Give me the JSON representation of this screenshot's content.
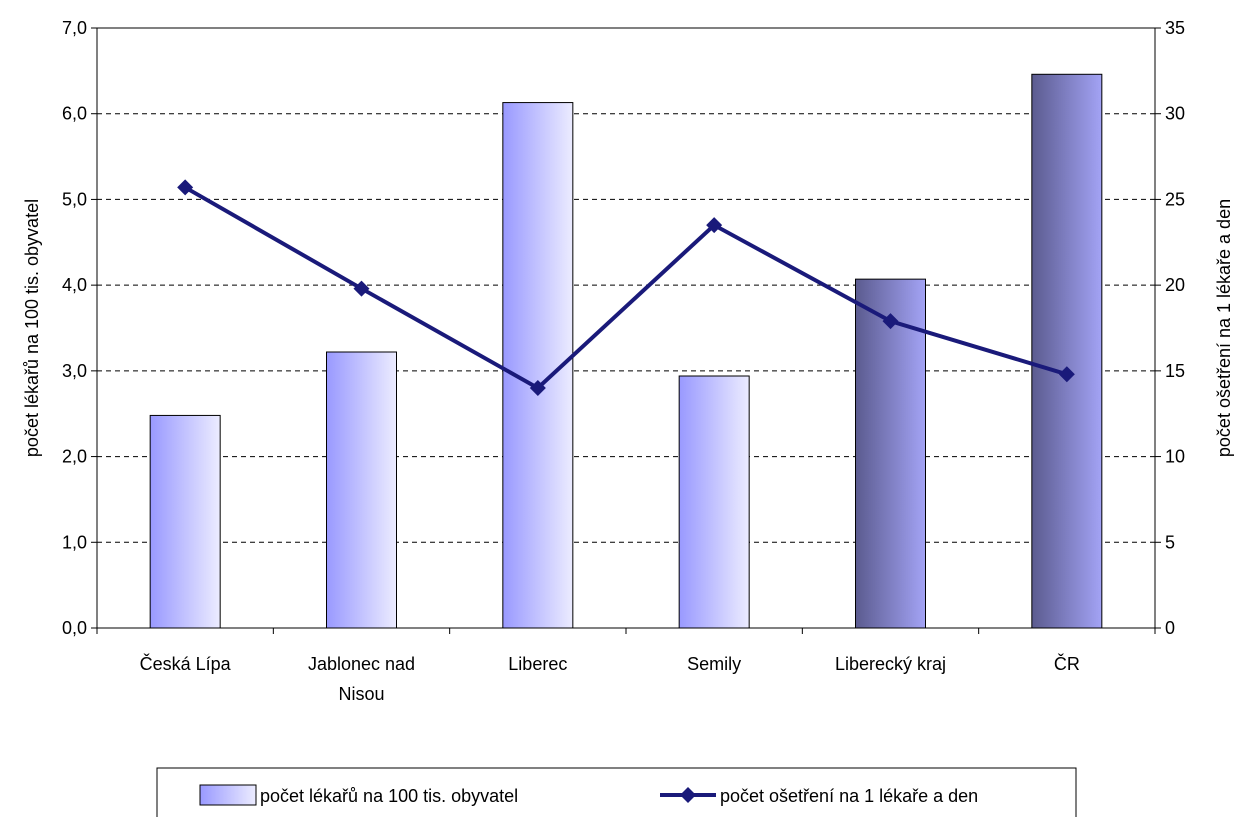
{
  "chart_data": {
    "type": "bar",
    "categories": [
      [
        "Česká Lípa"
      ],
      [
        "Jablonec nad",
        "Nisou"
      ],
      [
        "Liberec"
      ],
      [
        "Semily"
      ],
      [
        "Liberecký kraj"
      ],
      [
        "ČR"
      ]
    ],
    "series": [
      {
        "name": "počet lékařů na 100 tis. obyvatel",
        "type": "bar",
        "axis": "left",
        "values": [
          2.48,
          3.22,
          6.13,
          2.94,
          4.07,
          6.46
        ]
      },
      {
        "name": "počet ošetření na 1 lékaře a den",
        "type": "line",
        "axis": "right",
        "values": [
          25.7,
          19.8,
          14.0,
          23.5,
          17.9,
          14.8
        ],
        "color": "#1a1a7a"
      }
    ],
    "ylabel_left": "počet lékařů na 100 tis. obyvatel",
    "ylabel_right": "počet ošetření na 1 lékaře a den",
    "ylim_left": [
      0,
      7
    ],
    "ylim_right": [
      0,
      35
    ],
    "yticks_left": [
      "0,0",
      "1,0",
      "2,0",
      "3,0",
      "4,0",
      "5,0",
      "6,0",
      "7,0"
    ],
    "yticks_right": [
      "0",
      "5",
      "10",
      "15",
      "20",
      "25",
      "30",
      "35"
    ],
    "grid": "horizontal dashed",
    "legend_position": "bottom",
    "colors": {
      "bar_light_start": "#9999ff",
      "bar_light_end": "#ececff",
      "bar_dark_start": "#5b5b8f",
      "bar_dark_end": "#a3a3f5",
      "line": "#1a1a7a"
    }
  }
}
